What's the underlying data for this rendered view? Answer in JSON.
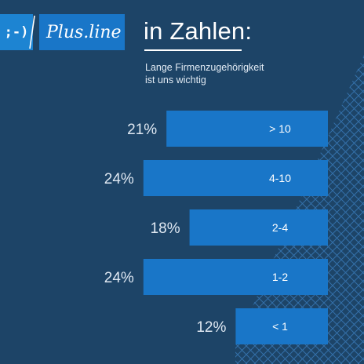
{
  "brand": {
    "logo_left": ";-)",
    "logo_right": "Plus.line"
  },
  "header": {
    "title": "in Zahlen:",
    "subtitle_line1": "Lange Firmenzugehörigkeit",
    "subtitle_line2": "ist uns wichtig"
  },
  "colors": {
    "background": "#1d4467",
    "bar": "#1976c8",
    "logo_left": "#1d84d2",
    "grid_lines": "#3d7fbf"
  },
  "chart_data": {
    "type": "bar",
    "orientation": "horizontal",
    "categories": [
      "> 10",
      "4-10",
      "2-4",
      "1-2",
      "< 1"
    ],
    "values": [
      21,
      24,
      18,
      24,
      12
    ],
    "value_labels": [
      "21%",
      "24%",
      "18%",
      "24%",
      "12%"
    ],
    "unit": "%",
    "title": "in Zahlen:",
    "subtitle": "Lange Firmenzugehörigkeit ist uns wichtig",
    "xlabel": "",
    "ylabel": ""
  }
}
